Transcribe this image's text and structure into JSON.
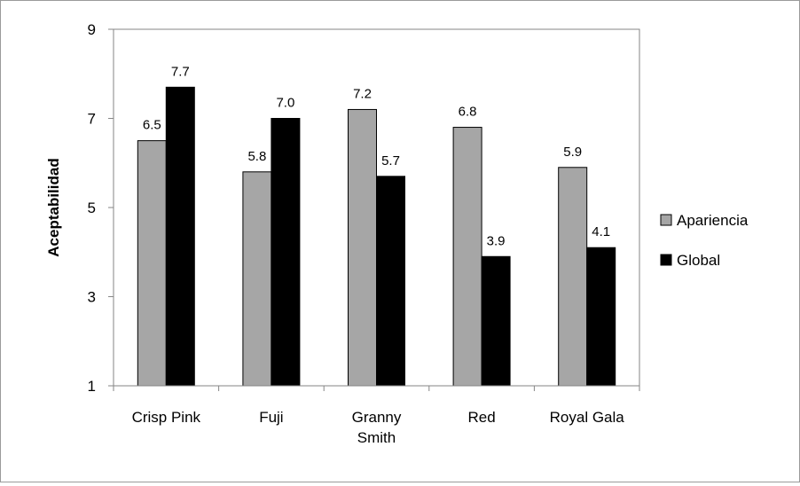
{
  "chart_data": {
    "type": "bar",
    "categories": [
      [
        "Crisp Pink"
      ],
      [
        "Fuji"
      ],
      [
        "Granny",
        "Smith"
      ],
      [
        "Red"
      ],
      [
        "Royal Gala"
      ]
    ],
    "series": [
      {
        "name": "Apariencia",
        "values": [
          6.5,
          5.8,
          7.2,
          6.8,
          5.9
        ],
        "labels": [
          "6.5",
          "5.8",
          "7.2",
          "6.8",
          "5.9"
        ],
        "color": "#a6a6a6"
      },
      {
        "name": "Global",
        "values": [
          7.7,
          7.0,
          5.7,
          3.9,
          4.1
        ],
        "labels": [
          "7.7",
          "7.0",
          "5.7",
          "3.9",
          "4.1"
        ],
        "color": "#000000"
      }
    ],
    "ylabel": "Aceptabilidad",
    "xlabel": "",
    "ylim": [
      1,
      9
    ],
    "yticks": [
      1,
      3,
      5,
      7,
      9
    ],
    "grid": false,
    "legend_position": "right"
  }
}
